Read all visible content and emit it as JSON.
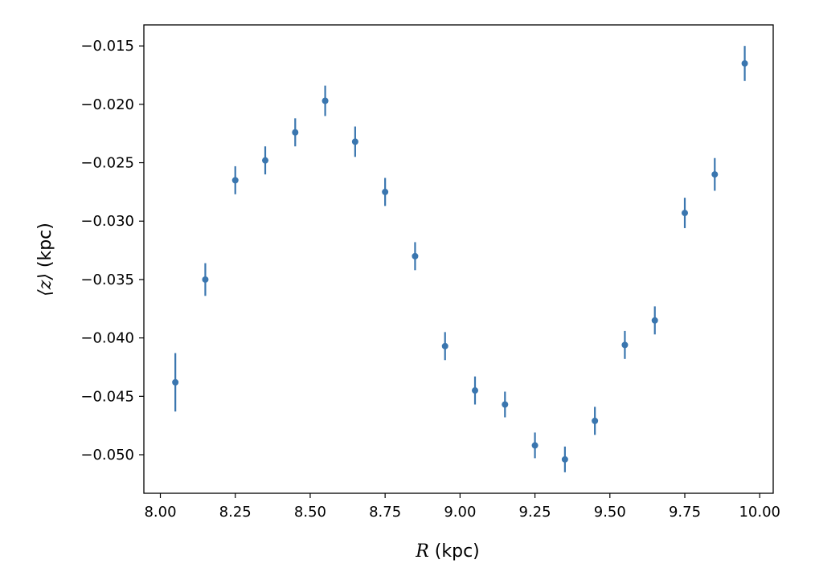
{
  "chart_data": {
    "type": "scatter",
    "xlabel": "R (kpc)",
    "xlabel_var": "R",
    "xlabel_unit": " (kpc)",
    "ylabel": "⟨z⟩ (kpc)",
    "ylabel_var": "⟨z⟩",
    "ylabel_unit": " (kpc)",
    "xlim": [
      7.945,
      10.045
    ],
    "ylim": [
      -0.0533,
      -0.0132
    ],
    "xticks": [
      8.0,
      8.25,
      8.5,
      8.75,
      9.0,
      9.25,
      9.5,
      9.75,
      10.0
    ],
    "xtick_labels": [
      "8.00",
      "8.25",
      "8.50",
      "8.75",
      "9.00",
      "9.25",
      "9.50",
      "9.75",
      "10.00"
    ],
    "yticks": [
      -0.015,
      -0.02,
      -0.025,
      -0.03,
      -0.035,
      -0.04,
      -0.045,
      -0.05
    ],
    "ytick_labels": [
      "−0.015",
      "−0.020",
      "−0.025",
      "−0.030",
      "−0.035",
      "−0.040",
      "−0.045",
      "−0.050"
    ],
    "grid": false,
    "marker_color": "#3a76af",
    "series": [
      {
        "x": [
          8.05,
          8.15,
          8.25,
          8.35,
          8.45,
          8.55,
          8.65,
          8.75,
          8.85,
          8.95,
          9.05,
          9.15,
          9.25,
          9.35,
          9.45,
          9.55,
          9.65,
          9.75,
          9.85,
          9.95
        ],
        "y": [
          -0.0438,
          -0.035,
          -0.0265,
          -0.0248,
          -0.0224,
          -0.0197,
          -0.0232,
          -0.0275,
          -0.033,
          -0.0407,
          -0.0445,
          -0.0457,
          -0.0492,
          -0.0504,
          -0.0471,
          -0.0406,
          -0.0385,
          -0.0293,
          -0.026,
          -0.0165
        ],
        "yerr": [
          0.0025,
          0.0014,
          0.0012,
          0.0012,
          0.0012,
          0.0013,
          0.0013,
          0.0012,
          0.0012,
          0.0012,
          0.0012,
          0.0011,
          0.0011,
          0.0011,
          0.0012,
          0.0012,
          0.0012,
          0.0013,
          0.0014,
          0.0015
        ]
      }
    ]
  }
}
